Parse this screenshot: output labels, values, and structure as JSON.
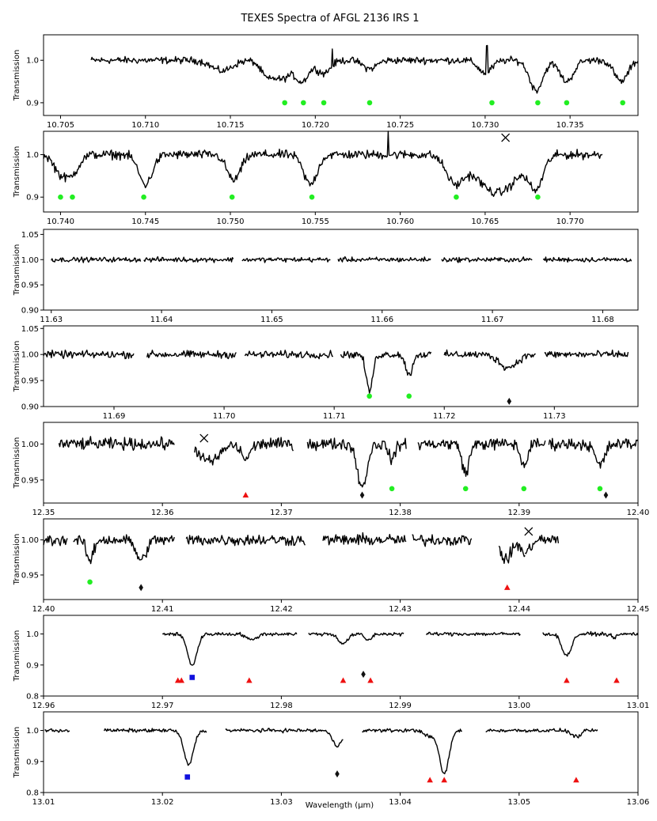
{
  "chart_data": {
    "type": "line",
    "title": "TEXES Spectra of AFGL 2136 IRS 1",
    "xlabel": "Wavelength (μm)",
    "ylabel": "Transmission",
    "legend": "none",
    "grid": false,
    "marker_legend": {
      "green_circle": "#22ee22",
      "red_triangle": "#ee1111",
      "black_diamond": "#111111",
      "blue_square": "#1111dd",
      "cross": "#000000"
    },
    "panels": [
      {
        "xlim": [
          10.704,
          10.739
        ],
        "ylim": [
          0.87,
          1.06
        ],
        "xticks": [
          "10.705",
          "10.710",
          "10.715",
          "10.720",
          "10.725",
          "10.730",
          "10.735"
        ],
        "yticks": [
          "0.9",
          "1.0"
        ],
        "segments": [
          [
            10.7068,
            10.739
          ]
        ],
        "noise": 0.007,
        "features": [
          [
            10.7145,
            0.025,
            0.0006
          ],
          [
            10.7172,
            0.04,
            0.0004
          ],
          [
            10.7181,
            0.04,
            0.0004
          ],
          [
            10.7192,
            0.05,
            0.0004
          ],
          [
            10.7205,
            0.03,
            0.0004
          ],
          [
            10.7232,
            0.02,
            0.0004
          ],
          [
            10.73,
            0.03,
            0.0004
          ],
          [
            10.733,
            0.07,
            0.0004
          ],
          [
            10.7348,
            0.05,
            0.0004
          ],
          [
            10.738,
            0.05,
            0.0004
          ]
        ],
        "spikes": [
          [
            10.721,
            0.04
          ],
          [
            10.7301,
            0.06
          ],
          [
            10.7392,
            0.04
          ]
        ],
        "markers": [
          {
            "x": 10.7182,
            "y": 0.9,
            "kind": "circle"
          },
          {
            "x": 10.7193,
            "y": 0.9,
            "kind": "circle"
          },
          {
            "x": 10.7205,
            "y": 0.9,
            "kind": "circle"
          },
          {
            "x": 10.7232,
            "y": 0.9,
            "kind": "circle"
          },
          {
            "x": 10.7304,
            "y": 0.9,
            "kind": "circle"
          },
          {
            "x": 10.7331,
            "y": 0.9,
            "kind": "circle"
          },
          {
            "x": 10.7348,
            "y": 0.9,
            "kind": "circle"
          },
          {
            "x": 10.7381,
            "y": 0.9,
            "kind": "circle"
          }
        ]
      },
      {
        "xlim": [
          10.739,
          10.774
        ],
        "ylim": [
          0.865,
          1.055
        ],
        "xticks": [
          "10.740",
          "10.745",
          "10.750",
          "10.755",
          "10.760",
          "10.765",
          "10.770"
        ],
        "yticks": [
          "0.9",
          "1.0"
        ],
        "segments": [
          [
            10.739,
            10.7719
          ]
        ],
        "noise": 0.009,
        "features": [
          [
            10.74,
            0.04,
            0.0004
          ],
          [
            10.7407,
            0.04,
            0.0004
          ],
          [
            10.745,
            0.07,
            0.0004
          ],
          [
            10.7502,
            0.06,
            0.0004
          ],
          [
            10.7547,
            0.07,
            0.0004
          ],
          [
            10.7632,
            0.06,
            0.0005
          ],
          [
            10.7657,
            0.09,
            0.0012
          ],
          [
            10.768,
            0.07,
            0.0004
          ]
        ],
        "spikes": [
          [
            10.7593,
            0.06
          ]
        ],
        "markers": [
          {
            "x": 10.74,
            "y": 0.9,
            "kind": "circle"
          },
          {
            "x": 10.7407,
            "y": 0.9,
            "kind": "circle"
          },
          {
            "x": 10.7449,
            "y": 0.9,
            "kind": "circle"
          },
          {
            "x": 10.7501,
            "y": 0.9,
            "kind": "circle"
          },
          {
            "x": 10.7548,
            "y": 0.9,
            "kind": "circle"
          },
          {
            "x": 10.7633,
            "y": 0.9,
            "kind": "circle"
          },
          {
            "x": 10.7681,
            "y": 0.9,
            "kind": "circle"
          },
          {
            "x": 10.7662,
            "y": 1.04,
            "kind": "cross"
          }
        ]
      },
      {
        "xlim": [
          11.6293,
          11.6832
        ],
        "ylim": [
          0.9,
          1.06
        ],
        "xticks": [
          "11.63",
          "11.64",
          "11.65",
          "11.66",
          "11.67",
          "11.68"
        ],
        "yticks": [
          "0.90",
          "0.95",
          "1.00",
          "1.05"
        ],
        "segments": [
          [
            11.63,
            11.6381
          ],
          [
            11.6384,
            11.6465
          ],
          [
            11.6473,
            11.6553
          ],
          [
            11.656,
            11.6644
          ],
          [
            11.6654,
            11.6736
          ],
          [
            11.6746,
            11.6826
          ]
        ],
        "noise": 0.004,
        "features": [],
        "spikes": [],
        "markers": []
      },
      {
        "xlim": [
          11.6836,
          11.7376
        ],
        "ylim": [
          0.9,
          1.055
        ],
        "xticks": [
          "11.69",
          "11.70",
          "11.71",
          "11.72",
          "11.73"
        ],
        "yticks": [
          "0.90",
          "0.95",
          "1.00",
          "1.05"
        ],
        "segments": [
          [
            11.6836,
            11.6918
          ],
          [
            11.693,
            11.7011
          ],
          [
            11.7019,
            11.7099
          ],
          [
            11.7106,
            11.7188
          ],
          [
            11.72,
            11.7283
          ],
          [
            11.7291,
            11.7367
          ]
        ],
        "noise": 0.006,
        "features": [
          [
            11.7132,
            0.07,
            0.0003
          ],
          [
            11.7168,
            0.04,
            0.0003
          ],
          [
            11.7258,
            0.025,
            0.0008
          ]
        ],
        "spikes": [],
        "markers": [
          {
            "x": 11.7132,
            "y": 0.92,
            "kind": "circle"
          },
          {
            "x": 11.7168,
            "y": 0.92,
            "kind": "circle"
          },
          {
            "x": 11.7259,
            "y": 0.91,
            "kind": "diamond"
          }
        ]
      },
      {
        "xlim": [
          12.35,
          12.4
        ],
        "ylim": [
          0.918,
          1.03
        ],
        "xticks": [
          "12.35",
          "12.36",
          "12.37",
          "12.38",
          "12.39",
          "12.40"
        ],
        "yticks": [
          "0.95",
          "1.00"
        ],
        "segments": [
          [
            12.3513,
            12.353
          ],
          [
            12.353,
            12.361
          ],
          [
            12.3627,
            12.3686
          ],
          [
            12.3686,
            12.371
          ],
          [
            12.3722,
            12.3782
          ],
          [
            12.3782,
            12.3805
          ],
          [
            12.3815,
            12.3883
          ],
          [
            12.3883,
            12.3922
          ],
          [
            12.3925,
            12.4
          ]
        ],
        "noise": 0.007,
        "features": [
          [
            12.364,
            0.025,
            0.0008
          ],
          [
            12.367,
            0.02,
            0.0004
          ],
          [
            12.3768,
            0.06,
            0.0004
          ],
          [
            12.3793,
            0.02,
            0.0003
          ],
          [
            12.3855,
            0.04,
            0.0003
          ],
          [
            12.3904,
            0.03,
            0.0003
          ],
          [
            12.3968,
            0.03,
            0.0004
          ]
        ],
        "spikes": [],
        "markers": [
          {
            "x": 12.367,
            "y": 0.929,
            "kind": "triangle"
          },
          {
            "x": 12.3768,
            "y": 0.929,
            "kind": "diamond"
          },
          {
            "x": 12.3793,
            "y": 0.938,
            "kind": "circle"
          },
          {
            "x": 12.3855,
            "y": 0.938,
            "kind": "circle"
          },
          {
            "x": 12.3904,
            "y": 0.938,
            "kind": "circle"
          },
          {
            "x": 12.3968,
            "y": 0.938,
            "kind": "circle"
          },
          {
            "x": 12.3973,
            "y": 0.929,
            "kind": "diamond"
          },
          {
            "x": 12.3635,
            "y": 1.008,
            "kind": "cross"
          }
        ]
      },
      {
        "xlim": [
          12.4,
          12.45
        ],
        "ylim": [
          0.915,
          1.03
        ],
        "xticks": [
          "12.40",
          "12.41",
          "12.42",
          "12.43",
          "12.44",
          "12.45"
        ],
        "yticks": [
          "0.95",
          "1.00"
        ],
        "segments": [
          [
            12.4,
            12.402
          ],
          [
            12.4025,
            12.411
          ],
          [
            12.412,
            12.422
          ],
          [
            12.4235,
            12.4305
          ],
          [
            12.431,
            12.436
          ],
          [
            12.4383,
            12.4405
          ],
          [
            12.4405,
            12.4433
          ]
        ],
        "noise": 0.007,
        "features": [
          [
            12.4039,
            0.03,
            0.0003
          ],
          [
            12.4082,
            0.03,
            0.0004
          ],
          [
            12.4389,
            0.03,
            0.0004
          ],
          [
            12.4405,
            0.02,
            0.0004
          ]
        ],
        "spikes": [],
        "markers": [
          {
            "x": 12.4039,
            "y": 0.94,
            "kind": "circle"
          },
          {
            "x": 12.4082,
            "y": 0.932,
            "kind": "diamond"
          },
          {
            "x": 12.439,
            "y": 0.932,
            "kind": "triangle"
          },
          {
            "x": 12.4408,
            "y": 1.012,
            "kind": "cross"
          }
        ]
      },
      {
        "xlim": [
          12.96,
          13.01
        ],
        "ylim": [
          0.8,
          1.06
        ],
        "xticks": [
          "12.96",
          "12.97",
          "12.98",
          "12.99",
          "13.00",
          "13.01"
        ],
        "yticks": [
          "0.8",
          "0.9",
          "1.0"
        ],
        "segments": [
          [
            12.97,
            12.9813
          ],
          [
            12.9823,
            12.9903
          ],
          [
            12.9922,
            13.0001
          ],
          [
            13.002,
            13.01
          ]
        ],
        "noise": 0.005,
        "features": [
          [
            12.9725,
            0.1,
            0.0004
          ],
          [
            12.9775,
            0.02,
            0.0004
          ],
          [
            12.9852,
            0.03,
            0.0004
          ],
          [
            12.9873,
            0.02,
            0.0003
          ],
          [
            13.004,
            0.07,
            0.0004
          ],
          [
            13.008,
            0.01,
            0.0003
          ]
        ],
        "spikes": [],
        "markers": [
          {
            "x": 12.9713,
            "y": 0.85,
            "kind": "triangle"
          },
          {
            "x": 12.9716,
            "y": 0.85,
            "kind": "triangle"
          },
          {
            "x": 12.9725,
            "y": 0.86,
            "kind": "square"
          },
          {
            "x": 12.9773,
            "y": 0.85,
            "kind": "triangle"
          },
          {
            "x": 12.9852,
            "y": 0.85,
            "kind": "triangle"
          },
          {
            "x": 12.9869,
            "y": 0.87,
            "kind": "diamond"
          },
          {
            "x": 12.9875,
            "y": 0.85,
            "kind": "triangle"
          },
          {
            "x": 13.004,
            "y": 0.85,
            "kind": "triangle"
          },
          {
            "x": 13.0082,
            "y": 0.85,
            "kind": "triangle"
          }
        ]
      },
      {
        "xlim": [
          13.01,
          13.06
        ],
        "ylim": [
          0.8,
          1.06
        ],
        "xticks": [
          "13.01",
          "13.02",
          "13.03",
          "13.04",
          "13.05",
          "13.06"
        ],
        "yticks": [
          "0.8",
          "0.9",
          "1.0"
        ],
        "segments": [
          [
            13.0101,
            13.0122
          ],
          [
            13.0151,
            13.0237
          ],
          [
            13.0253,
            13.0352
          ],
          [
            13.0368,
            13.0452
          ],
          [
            13.0472,
            13.0566
          ]
        ],
        "noise": 0.005,
        "features": [
          [
            13.0222,
            0.11,
            0.0004
          ],
          [
            13.0347,
            0.05,
            0.0004
          ],
          [
            13.0425,
            0.02,
            0.0004
          ],
          [
            13.0437,
            0.14,
            0.0004
          ],
          [
            13.0548,
            0.02,
            0.0004
          ]
        ],
        "spikes": [],
        "markers": [
          {
            "x": 13.0221,
            "y": 0.85,
            "kind": "square"
          },
          {
            "x": 13.0347,
            "y": 0.86,
            "kind": "diamond"
          },
          {
            "x": 13.0425,
            "y": 0.84,
            "kind": "triangle"
          },
          {
            "x": 13.0437,
            "y": 0.84,
            "kind": "triangle"
          },
          {
            "x": 13.0548,
            "y": 0.84,
            "kind": "triangle"
          }
        ]
      }
    ]
  }
}
